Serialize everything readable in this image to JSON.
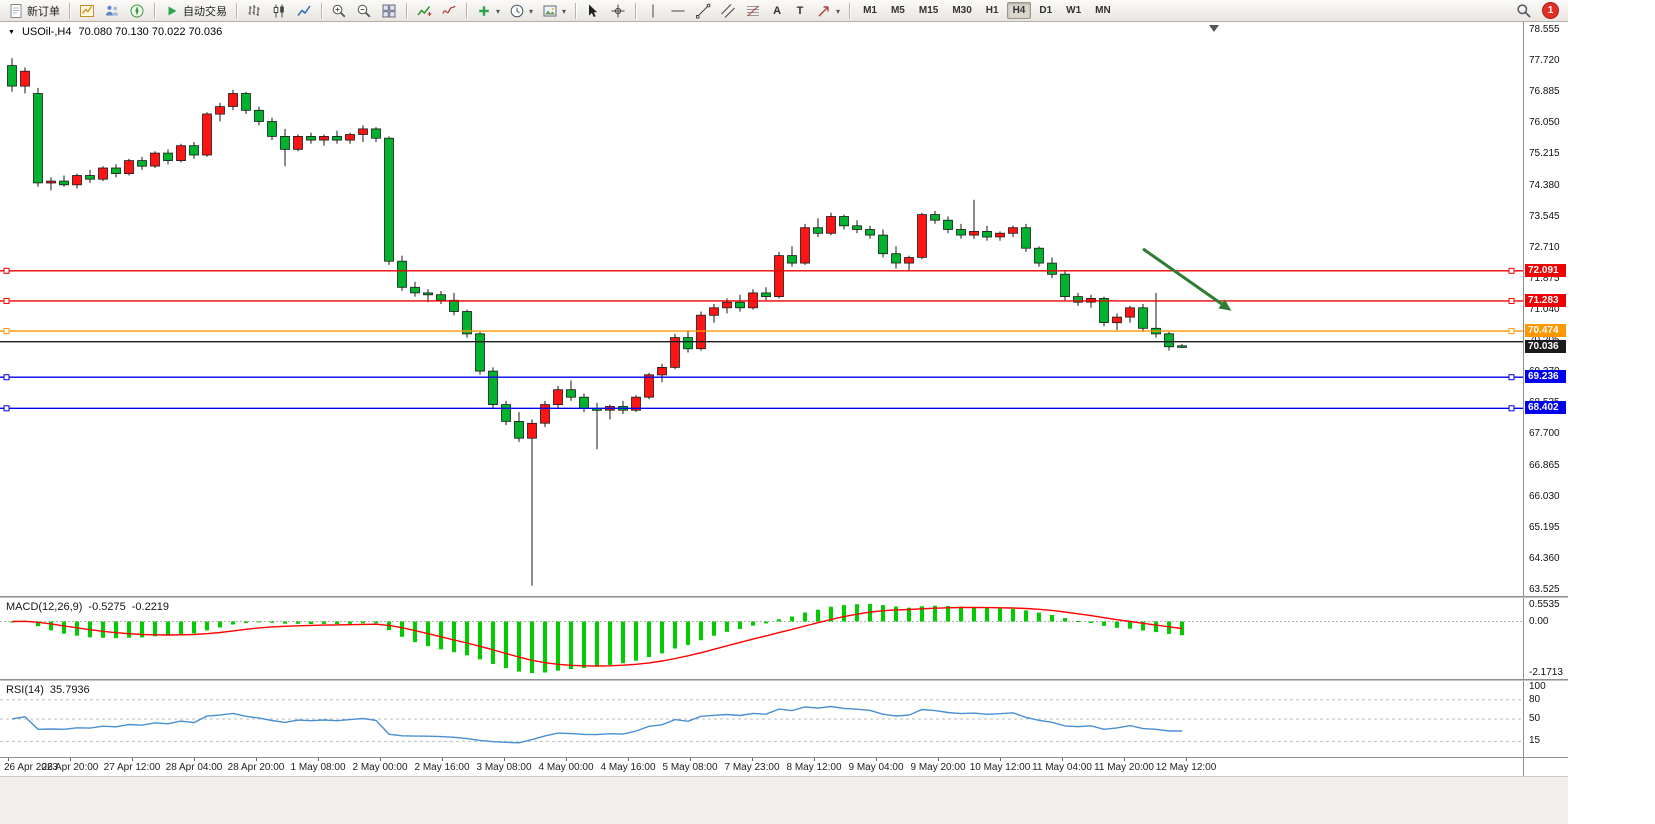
{
  "toolbar": {
    "new_order_label": "新订单",
    "autotrading_label": "自动交易",
    "text_tool_label": "A",
    "text_label_tool_label": "T",
    "timeframes": [
      "M1",
      "M5",
      "M15",
      "M30",
      "H1",
      "H4",
      "D1",
      "W1",
      "MN"
    ],
    "active_timeframe": "H4",
    "notification_count": "1"
  },
  "chart": {
    "title": "USOil-,H4",
    "ohlc_text": "70.080 70.130 70.022 70.036",
    "macd_name": "MACD(12,26,9)",
    "macd_value_main": "-0.5275",
    "macd_value_signal": "-0.2219",
    "rsi_name": "RSI(14)",
    "rsi_value": "35.7936"
  },
  "axes": {
    "price_labels": [
      "78.555",
      "77.720",
      "76.885",
      "76.050",
      "75.215",
      "74.380",
      "73.545",
      "72.710",
      "71.875",
      "71.040",
      "70.205",
      "69.370",
      "68.535",
      "67.700",
      "66.865",
      "66.030",
      "65.195",
      "64.360",
      "63.525"
    ],
    "time_labels": [
      "26 Apr 2023",
      "26 Apr 20:00",
      "27 Apr 12:00",
      "28 Apr 04:00",
      "28 Apr 20:00",
      "1 May 08:00",
      "2 May 00:00",
      "2 May 16:00",
      "3 May 08:00",
      "4 May 00:00",
      "4 May 16:00",
      "5 May 08:00",
      "7 May 23:00",
      "8 May 12:00",
      "9 May 04:00",
      "9 May 20:00",
      "10 May 12:00",
      "11 May 04:00",
      "11 May 20:00",
      "12 May 12:00"
    ],
    "macd_scale": [
      "0.5535",
      "0.00",
      "-2.1713"
    ],
    "rsi_scale": [
      "100",
      "80",
      "50",
      "15"
    ],
    "rsi_levels": [
      80,
      50,
      15
    ]
  },
  "chart_data": {
    "type": "candlestick",
    "symbol": "USOil-",
    "period": "H4",
    "price_axis_range": [
      63.525,
      78.555
    ],
    "last_ohlc": {
      "open": 70.08,
      "high": 70.13,
      "low": 70.022,
      "close": 70.036
    },
    "candles_ohlc": [
      [
        77.6,
        77.8,
        76.9,
        77.05
      ],
      [
        77.05,
        77.55,
        76.85,
        77.45
      ],
      [
        76.85,
        77.0,
        74.35,
        74.45
      ],
      [
        74.45,
        74.6,
        74.25,
        74.5
      ],
      [
        74.5,
        74.65,
        74.35,
        74.4
      ],
      [
        74.4,
        74.7,
        74.3,
        74.65
      ],
      [
        74.65,
        74.8,
        74.45,
        74.55
      ],
      [
        74.55,
        74.9,
        74.5,
        74.85
      ],
      [
        74.85,
        74.95,
        74.6,
        74.7
      ],
      [
        74.7,
        75.1,
        74.65,
        75.05
      ],
      [
        75.05,
        75.15,
        74.8,
        74.9
      ],
      [
        74.9,
        75.3,
        74.85,
        75.25
      ],
      [
        75.25,
        75.35,
        74.95,
        75.05
      ],
      [
        75.05,
        75.5,
        75.0,
        75.45
      ],
      [
        75.45,
        75.55,
        75.1,
        75.2
      ],
      [
        75.2,
        76.35,
        75.15,
        76.3
      ],
      [
        76.3,
        76.6,
        76.1,
        76.5
      ],
      [
        76.5,
        76.95,
        76.4,
        76.85
      ],
      [
        76.85,
        76.9,
        76.3,
        76.4
      ],
      [
        76.4,
        76.5,
        76.0,
        76.1
      ],
      [
        76.1,
        76.2,
        75.6,
        75.7
      ],
      [
        75.7,
        75.9,
        74.9,
        75.35
      ],
      [
        75.35,
        75.75,
        75.3,
        75.7
      ],
      [
        75.7,
        75.8,
        75.5,
        75.6
      ],
      [
        75.6,
        75.75,
        75.45,
        75.7
      ],
      [
        75.7,
        75.85,
        75.5,
        75.6
      ],
      [
        75.6,
        75.8,
        75.5,
        75.75
      ],
      [
        75.75,
        76.0,
        75.55,
        75.9
      ],
      [
        75.9,
        75.95,
        75.55,
        75.65
      ],
      [
        75.65,
        75.7,
        72.25,
        72.35
      ],
      [
        72.35,
        72.5,
        71.55,
        71.65
      ],
      [
        71.65,
        71.8,
        71.4,
        71.5
      ],
      [
        71.5,
        71.6,
        71.25,
        71.45
      ],
      [
        71.45,
        71.55,
        71.2,
        71.3
      ],
      [
        71.3,
        71.5,
        70.9,
        71.0
      ],
      [
        71.0,
        71.05,
        70.3,
        70.4
      ],
      [
        70.4,
        70.45,
        69.3,
        69.4
      ],
      [
        69.4,
        69.5,
        68.4,
        68.5
      ],
      [
        68.5,
        68.6,
        67.95,
        68.05
      ],
      [
        68.05,
        68.3,
        67.5,
        67.6
      ],
      [
        67.6,
        68.1,
        63.64,
        68.0
      ],
      [
        68.0,
        68.6,
        67.9,
        68.5
      ],
      [
        68.5,
        69.0,
        68.4,
        68.9
      ],
      [
        68.9,
        69.15,
        68.6,
        68.7
      ],
      [
        68.7,
        68.8,
        68.3,
        68.4
      ],
      [
        68.4,
        68.55,
        67.3,
        68.35
      ],
      [
        68.35,
        68.5,
        68.1,
        68.45
      ],
      [
        68.45,
        68.6,
        68.25,
        68.35
      ],
      [
        68.35,
        68.75,
        68.3,
        68.7
      ],
      [
        68.7,
        69.35,
        68.65,
        69.3
      ],
      [
        69.3,
        69.6,
        69.1,
        69.5
      ],
      [
        69.5,
        70.4,
        69.45,
        70.3
      ],
      [
        70.3,
        70.5,
        69.9,
        70.0
      ],
      [
        70.0,
        71.0,
        69.95,
        70.9
      ],
      [
        70.9,
        71.2,
        70.7,
        71.1
      ],
      [
        71.1,
        71.35,
        70.95,
        71.25
      ],
      [
        71.25,
        71.45,
        71.0,
        71.1
      ],
      [
        71.1,
        71.6,
        71.05,
        71.5
      ],
      [
        71.5,
        71.65,
        71.3,
        71.4
      ],
      [
        71.4,
        72.6,
        71.35,
        72.5
      ],
      [
        72.5,
        72.75,
        72.2,
        72.3
      ],
      [
        72.3,
        73.35,
        72.25,
        73.25
      ],
      [
        73.25,
        73.5,
        73.0,
        73.1
      ],
      [
        73.1,
        73.65,
        73.05,
        73.55
      ],
      [
        73.55,
        73.6,
        73.2,
        73.3
      ],
      [
        73.3,
        73.45,
        73.1,
        73.2
      ],
      [
        73.2,
        73.3,
        72.95,
        73.05
      ],
      [
        73.05,
        73.2,
        72.45,
        72.55
      ],
      [
        72.55,
        72.75,
        72.15,
        72.3
      ],
      [
        72.3,
        72.5,
        72.1,
        72.45
      ],
      [
        72.45,
        73.65,
        72.4,
        73.6
      ],
      [
        73.6,
        73.7,
        73.35,
        73.45
      ],
      [
        73.45,
        73.55,
        73.1,
        73.2
      ],
      [
        73.2,
        73.35,
        72.95,
        73.05
      ],
      [
        73.05,
        74.0,
        72.95,
        73.15
      ],
      [
        73.15,
        73.3,
        72.9,
        73.0
      ],
      [
        73.0,
        73.15,
        72.9,
        73.1
      ],
      [
        73.1,
        73.3,
        73.0,
        73.25
      ],
      [
        73.25,
        73.35,
        72.6,
        72.7
      ],
      [
        72.7,
        72.75,
        72.2,
        72.3
      ],
      [
        72.3,
        72.45,
        71.9,
        72.0
      ],
      [
        72.0,
        72.1,
        71.3,
        71.4
      ],
      [
        71.4,
        71.5,
        71.15,
        71.25
      ],
      [
        71.25,
        71.45,
        71.1,
        71.35
      ],
      [
        71.35,
        71.4,
        70.6,
        70.7
      ],
      [
        70.7,
        70.95,
        70.5,
        70.85
      ],
      [
        70.85,
        71.15,
        70.7,
        71.1
      ],
      [
        71.1,
        71.2,
        70.45,
        70.55
      ],
      [
        70.55,
        71.5,
        70.3,
        70.4
      ],
      [
        70.4,
        70.45,
        69.95,
        70.05
      ],
      [
        70.08,
        70.13,
        70.022,
        70.036
      ]
    ],
    "horizontal_lines": [
      {
        "price": 72.091,
        "color": "#f00000",
        "tag": "72.091"
      },
      {
        "price": 71.283,
        "color": "#f00000",
        "tag": "71.283"
      },
      {
        "price": 70.474,
        "color": "#ff9800",
        "tag": "70.474"
      },
      {
        "price": 70.19,
        "color": "#1c1c1c",
        "tag": ""
      },
      {
        "price": 69.236,
        "color": "#0000ee",
        "tag": "69.236"
      },
      {
        "price": 68.402,
        "color": "#0000ee",
        "tag": "68.402"
      }
    ],
    "bid_price_tag": {
      "price": 70.036,
      "label": "70.036",
      "bg": "#1b1b1b"
    },
    "trend_arrow": {
      "from": [
        87.0,
        72.68
      ],
      "to": [
        93.8,
        71.02
      ],
      "color": "#2e7d32"
    },
    "indicators": [
      {
        "type": "MACD",
        "params": [
          12,
          26,
          9
        ],
        "display": "-0.5275 -0.2219"
      },
      {
        "type": "RSI",
        "params": [
          14
        ],
        "display": "35.7936"
      }
    ]
  },
  "colors": {
    "bull": "#ff1414",
    "bear": "#00b22d",
    "wick": "#1a1a1a",
    "macd_hist": "#00cc00",
    "macd_signal": "#ff0000",
    "rsi_line": "#4a8fd3"
  }
}
